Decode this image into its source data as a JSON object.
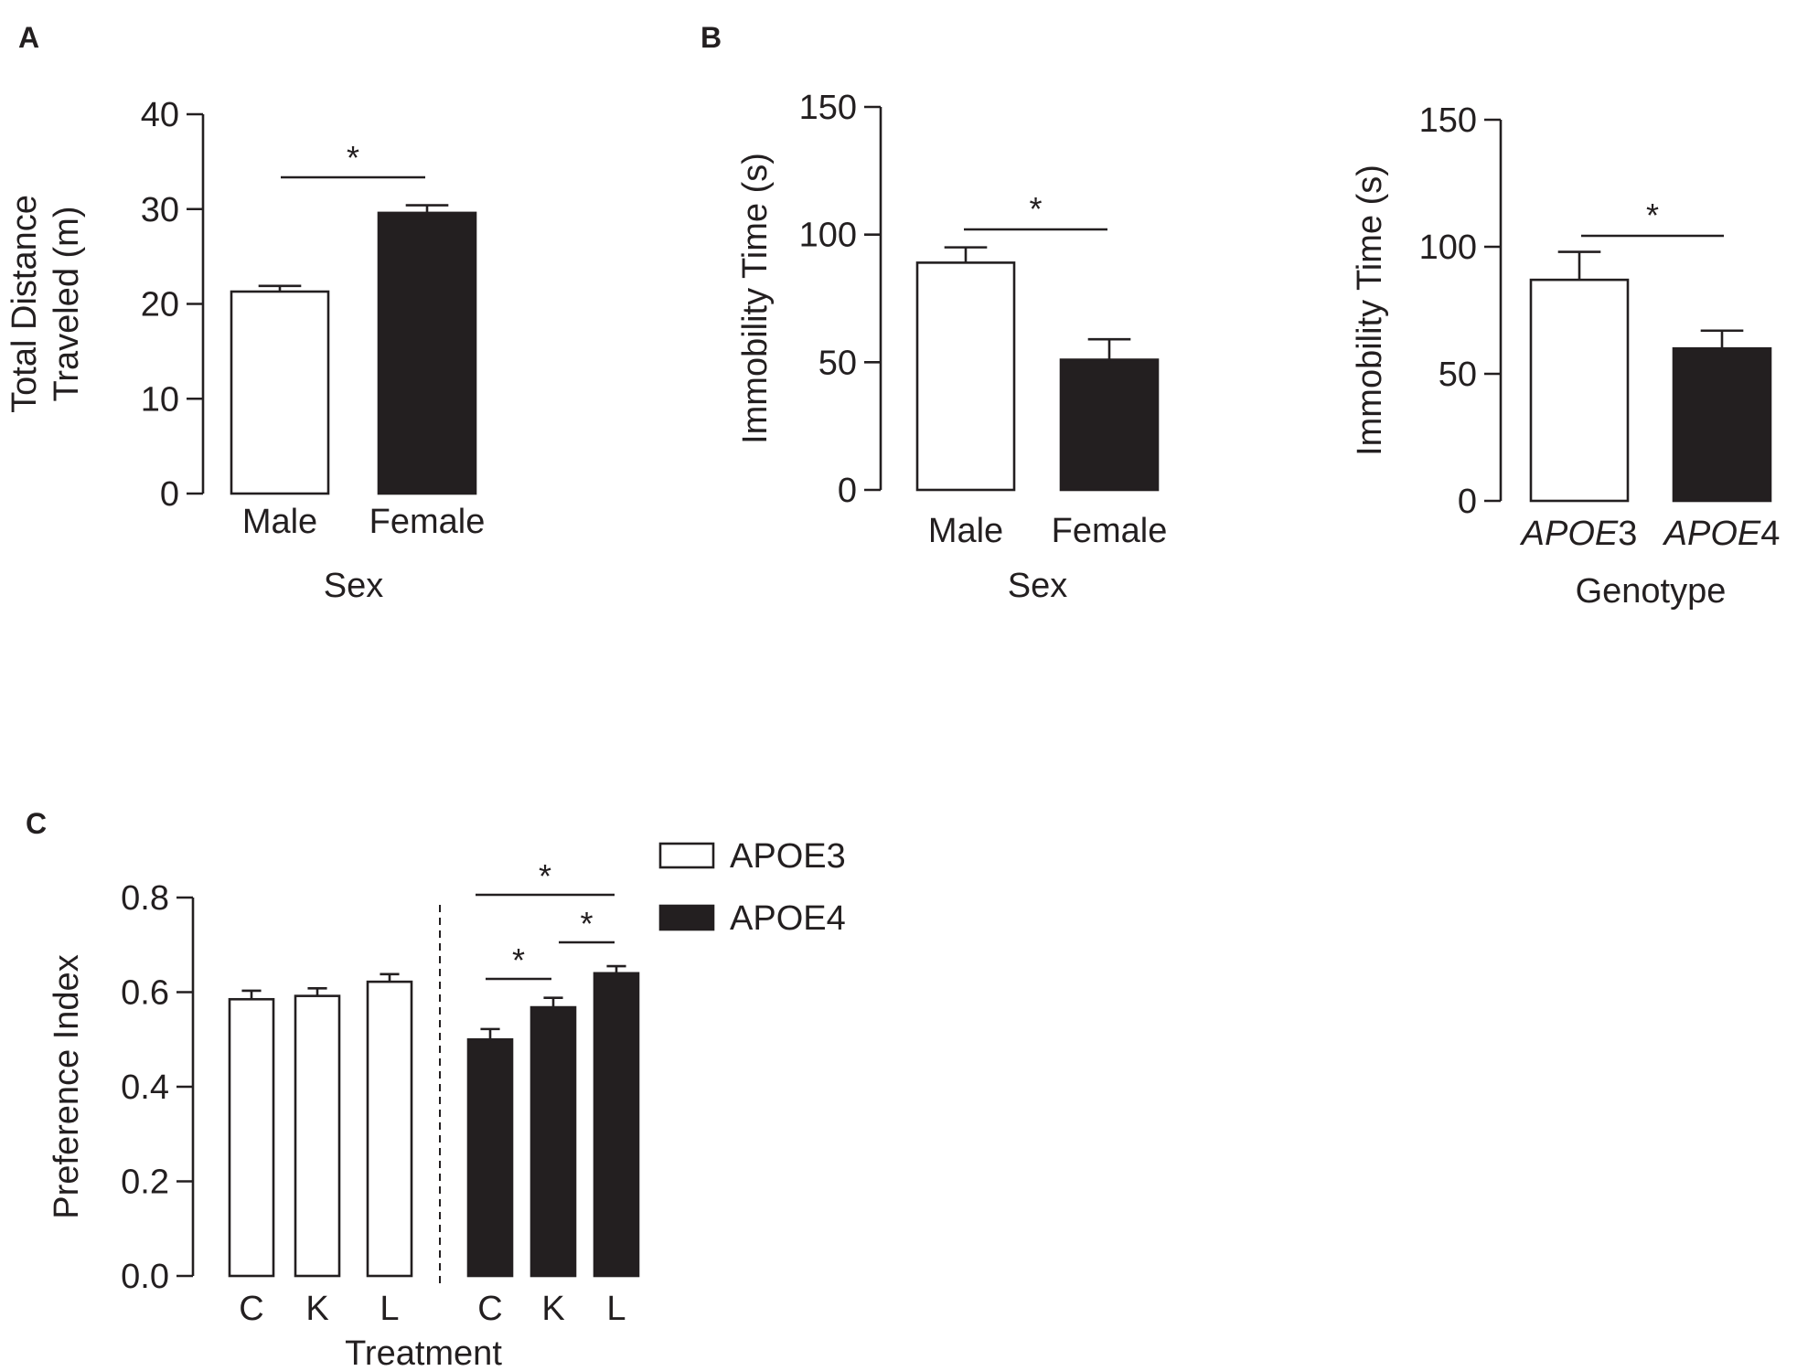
{
  "chart_data": [
    {
      "panel": "A",
      "type": "bar",
      "categories": [
        "Male",
        "Female"
      ],
      "values": [
        21.3,
        29.6
      ],
      "errors": [
        0.6,
        0.8
      ],
      "fills": [
        "#ffffff",
        "#231f20"
      ],
      "ylabel": [
        "Total Distance",
        "Traveled (m)"
      ],
      "xlabel": "Sex",
      "ylim": [
        0,
        40
      ],
      "yticks": [
        0,
        10,
        20,
        30,
        40
      ],
      "significance": [
        {
          "from": 0,
          "to": 1,
          "label": "*"
        }
      ]
    },
    {
      "panel": "B",
      "type": "bar",
      "categories": [
        "Male",
        "Female"
      ],
      "values": [
        89,
        51
      ],
      "errors": [
        6,
        8
      ],
      "fills": [
        "#ffffff",
        "#231f20"
      ],
      "ylabel": [
        "Immobility Time (s)"
      ],
      "xlabel": "Sex",
      "ylim": [
        0,
        150
      ],
      "yticks": [
        0,
        50,
        100,
        150
      ],
      "significance": [
        {
          "from": 0,
          "to": 1,
          "label": "*"
        }
      ]
    },
    {
      "panel": "",
      "type": "bar",
      "categories": [
        {
          "italic": "APOE",
          "plain": "3"
        },
        {
          "italic": "APOE",
          "plain": "4"
        }
      ],
      "values": [
        87,
        60
      ],
      "errors": [
        11,
        7
      ],
      "fills": [
        "#ffffff",
        "#231f20"
      ],
      "ylabel": [
        "Immobility Time (s)"
      ],
      "xlabel": "Genotype",
      "ylim": [
        0,
        150
      ],
      "yticks": [
        0,
        50,
        100,
        150
      ],
      "significance": [
        {
          "from": 0,
          "to": 1,
          "label": "*"
        }
      ]
    },
    {
      "panel": "C",
      "type": "bar",
      "categories": [
        "C",
        "K",
        "L",
        "C",
        "K",
        "L"
      ],
      "values": [
        0.585,
        0.592,
        0.622,
        0.5,
        0.568,
        0.64
      ],
      "errors": [
        0.018,
        0.016,
        0.016,
        0.022,
        0.02,
        0.015
      ],
      "series_index": [
        0,
        0,
        0,
        1,
        1,
        1
      ],
      "series": [
        {
          "name": "APOE3",
          "fill": "#ffffff"
        },
        {
          "name": "APOE4",
          "fill": "#231f20"
        }
      ],
      "ylabel": [
        "Preference Index"
      ],
      "xlabel": "Treatment",
      "ylim": [
        0,
        0.8
      ],
      "yticks": [
        "0.0",
        "0.2",
        "0.4",
        "0.6",
        "0.8"
      ],
      "group_divider": "dashed",
      "legend": "top-right",
      "significance": [
        {
          "from": 3,
          "to": 5,
          "label": "*"
        },
        {
          "from": 4,
          "to": 5,
          "label": "*"
        },
        {
          "from": 3,
          "to": 4,
          "label": "*"
        }
      ]
    }
  ]
}
